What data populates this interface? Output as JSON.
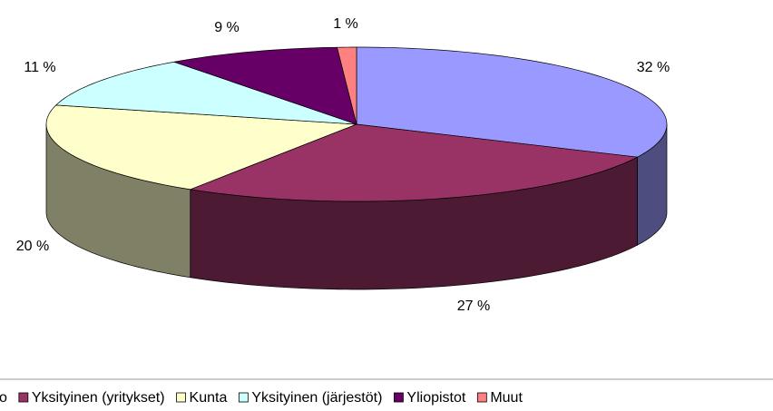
{
  "chart_data": {
    "type": "pie3d",
    "series": [
      {
        "name": "Valtio",
        "color": "#9999ff"
      },
      {
        "name": "Yksityinen (yritykset)",
        "color": "#993366"
      },
      {
        "name": "Kunta",
        "color": "#ffffcc"
      },
      {
        "name": "Yksityinen (järjestöt)",
        "color": "#ccffff"
      },
      {
        "name": "Yliopistot",
        "color": "#660066"
      },
      {
        "name": "Muut",
        "color": "#ff8080"
      }
    ],
    "values": [
      32,
      27,
      20,
      11,
      9,
      1
    ],
    "value_labels": [
      "32 %",
      "27 %",
      "20 %",
      "11 %",
      "9 %",
      "1 %"
    ],
    "legend": "bottom"
  }
}
